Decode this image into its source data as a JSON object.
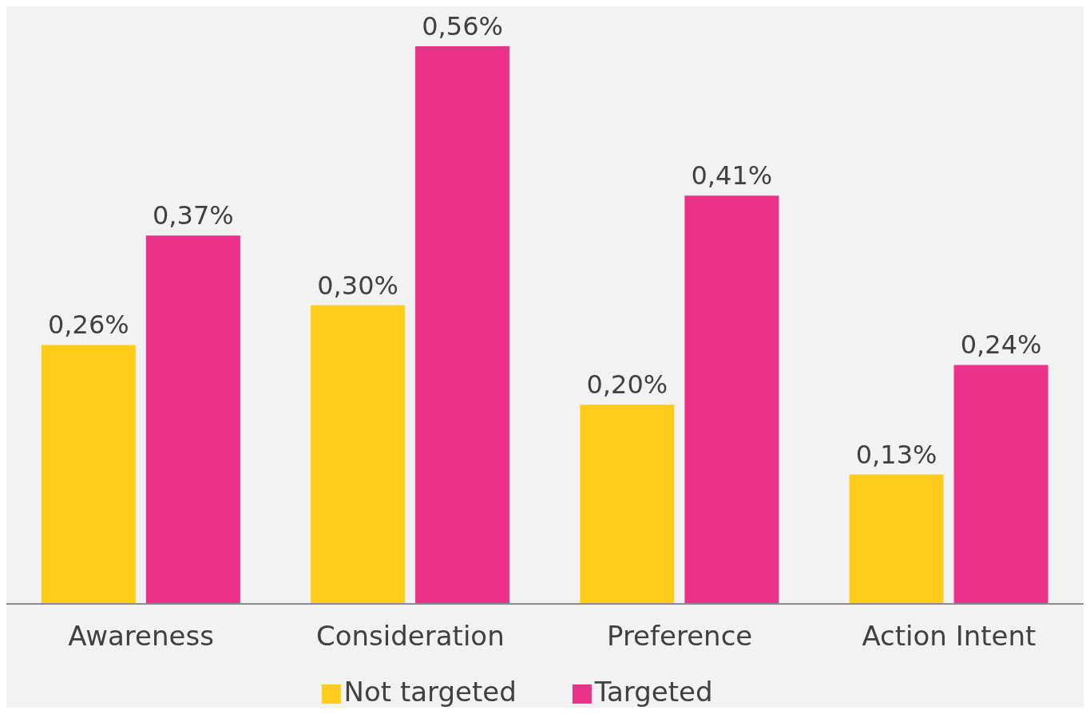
{
  "chart_data": {
    "type": "bar",
    "categories": [
      "Awareness",
      "Consideration",
      "Preference",
      "Action Intent"
    ],
    "series": [
      {
        "name": "Not targeted",
        "color": "#ffcc19",
        "values": [
          0.26,
          0.3,
          0.2,
          0.13
        ],
        "value_labels": [
          "0,26%",
          "0,30%",
          "0,20%",
          "0,13%"
        ]
      },
      {
        "name": "Targeted",
        "color": "#ec318b",
        "values": [
          0.37,
          0.56,
          0.41,
          0.24
        ],
        "value_labels": [
          "0,37%",
          "0,56%",
          "0,41%",
          "0,24%"
        ]
      }
    ],
    "legend": "bottom",
    "grid": false
  }
}
